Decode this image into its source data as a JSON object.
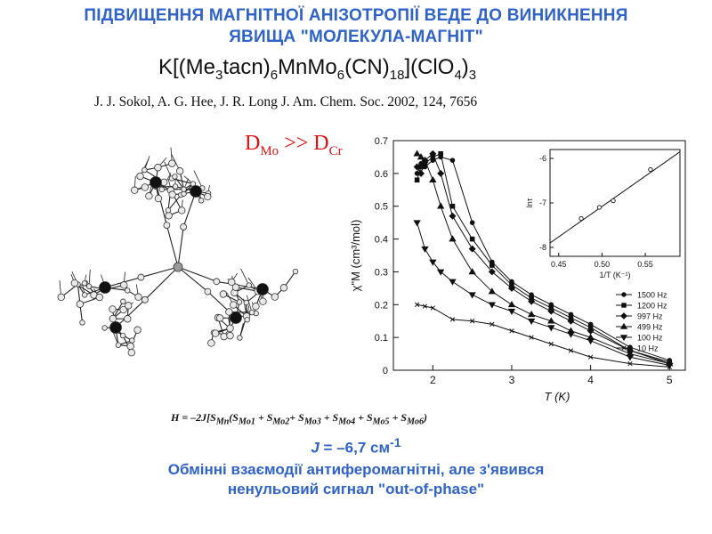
{
  "slide": {
    "title_line1": "ПІДВИЩЕННЯ МАГНІТНОЇ АНІЗОТРОПІЇ ВЕДЕ ДО ВИНИКНЕННЯ",
    "title_line2": "ЯВИЩА \"МОЛЕКУЛА-МАГНІТ\"",
    "formula": {
      "p1": "K[(Me",
      "s1": "3",
      "p2": "tacn)",
      "s2": "6",
      "p3": "MnMo",
      "s3": "6",
      "p4": "(CN)",
      "s4": "18",
      "p5": "](ClO",
      "s5": "4",
      "p6": ")",
      "s6": "3"
    },
    "citation": "J. J. Sokol, A. G. Hee, J. R. Long J. Am. Chem. Soc. 2002, 124, 7656",
    "relation": {
      "d1": "D",
      "sub1": "Mo",
      "op": " >> ",
      "d2": "D",
      "sub2": "Cr"
    },
    "hamiltonian": {
      "p1": "H = –2J[S",
      "s1": "Mn",
      "p2": "(S",
      "s2": "Mo1",
      "p3": " + S",
      "s3": "Mo2",
      "p4": "+ S",
      "s4": "Mo3",
      "p5": " + S",
      "s5": "Mo4",
      "p6": " + S",
      "s6": "Mo5",
      "p7": " + S",
      "s7": "Mo6",
      "p8": ")"
    },
    "j_value": {
      "j": "J",
      "rest": " = –6,7 см",
      "sup": "-1"
    },
    "conclusion_line1": "Обмінні взаємодії антиферомагнітні, але з'явився",
    "conclusion_line2": "ненульовий сигнал \"out-of-phase\""
  },
  "chart_data": [
    {
      "type": "line",
      "xlabel": "T (K)",
      "ylabel": "χ\"M (cm³/mol)",
      "xlim": [
        1.5,
        5.2
      ],
      "ylim": [
        0,
        0.7
      ],
      "x_ticks": [
        2,
        3,
        4,
        5
      ],
      "y_ticks": [
        0,
        0.1,
        0.2,
        0.3,
        0.4,
        0.5,
        0.6,
        0.7
      ],
      "legend_position": "bottom-right",
      "series": [
        {
          "name": "1500 Hz",
          "marker": "circle",
          "x": [
            1.8,
            1.85,
            1.9,
            2.0,
            2.1,
            2.25,
            2.5,
            2.75,
            3.0,
            3.25,
            3.5,
            3.75,
            4.0,
            4.5,
            5.0
          ],
          "y": [
            0.6,
            0.63,
            0.62,
            0.64,
            0.65,
            0.64,
            0.45,
            0.33,
            0.27,
            0.23,
            0.2,
            0.17,
            0.14,
            0.07,
            0.03
          ]
        },
        {
          "name": "1200 Hz",
          "marker": "square",
          "x": [
            1.8,
            1.85,
            1.9,
            2.0,
            2.1,
            2.25,
            2.5,
            2.75,
            3.0,
            3.25,
            3.5,
            3.75,
            4.0,
            4.5,
            5.0
          ],
          "y": [
            0.58,
            0.62,
            0.63,
            0.65,
            0.66,
            0.5,
            0.4,
            0.32,
            0.26,
            0.22,
            0.19,
            0.16,
            0.13,
            0.06,
            0.025
          ]
        },
        {
          "name": "997 Hz",
          "marker": "diamond",
          "x": [
            1.8,
            1.85,
            1.9,
            2.0,
            2.1,
            2.25,
            2.5,
            2.75,
            3.0,
            3.25,
            3.5,
            3.75,
            4.0,
            4.5,
            5.0
          ],
          "y": [
            0.62,
            0.6,
            0.64,
            0.66,
            0.6,
            0.47,
            0.37,
            0.3,
            0.25,
            0.21,
            0.18,
            0.15,
            0.12,
            0.06,
            0.02
          ]
        },
        {
          "name": "499 Hz",
          "marker": "triangle-up",
          "x": [
            1.8,
            1.85,
            1.9,
            2.0,
            2.1,
            2.25,
            2.5,
            2.75,
            3.0,
            3.25,
            3.5,
            3.75,
            4.0,
            4.5,
            5.0
          ],
          "y": [
            0.66,
            0.65,
            0.64,
            0.58,
            0.5,
            0.4,
            0.3,
            0.24,
            0.2,
            0.17,
            0.15,
            0.12,
            0.1,
            0.05,
            0.02
          ]
        },
        {
          "name": "100 Hz",
          "marker": "triangle-down",
          "x": [
            1.8,
            1.9,
            2.0,
            2.1,
            2.25,
            2.5,
            2.75,
            3.0,
            3.25,
            3.5,
            3.75,
            4.0,
            4.5,
            5.0
          ],
          "y": [
            0.45,
            0.37,
            0.33,
            0.3,
            0.27,
            0.23,
            0.2,
            0.18,
            0.15,
            0.13,
            0.11,
            0.09,
            0.04,
            0.015
          ]
        },
        {
          "name": "10 Hz",
          "marker": "cross",
          "x": [
            1.8,
            1.9,
            2.0,
            2.25,
            2.5,
            2.75,
            3.0,
            3.25,
            3.5,
            3.75,
            4.0,
            4.5,
            5.0
          ],
          "y": [
            0.2,
            0.195,
            0.19,
            0.155,
            0.15,
            0.14,
            0.12,
            0.1,
            0.08,
            0.06,
            0.04,
            0.02,
            0.01
          ]
        }
      ]
    },
    {
      "type": "scatter",
      "xlabel": "1/T (K⁻¹)",
      "ylabel": "lnτ",
      "xlim": [
        0.44,
        0.59
      ],
      "ylim": [
        -8.2,
        -5.8
      ],
      "x_ticks": [
        0.45,
        0.5,
        0.55
      ],
      "x_tick_labels": [
        "0.45",
        "0.50",
        "0.55"
      ],
      "y_ticks": [
        -8,
        -7,
        -6
      ],
      "points": [
        {
          "x": 0.476,
          "y": -7.35
        },
        {
          "x": 0.497,
          "y": -7.1
        },
        {
          "x": 0.513,
          "y": -6.95
        },
        {
          "x": 0.556,
          "y": -6.25
        }
      ],
      "fit_line": {
        "x": [
          0.44,
          0.59
        ],
        "y": [
          -7.9,
          -5.85
        ]
      }
    }
  ]
}
